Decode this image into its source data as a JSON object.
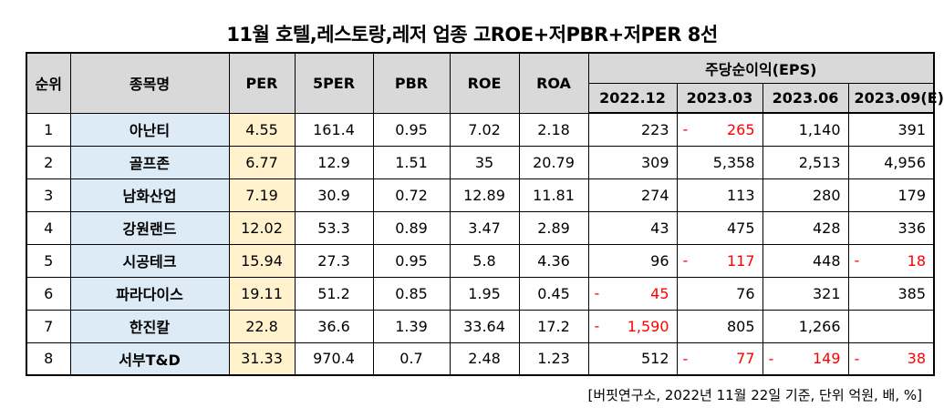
{
  "title": "11월  호텔,레스토랑,레저 업종 고ROE+저PBR+저PER 8선",
  "headers": {
    "rank": "순위",
    "name": "종목명",
    "per": "PER",
    "per5": "5PER",
    "pbr": "PBR",
    "roe": "ROE",
    "roa": "ROA",
    "eps_group": "주당순이익(EPS)",
    "eps_periods": [
      "2022.12",
      "2023.03",
      "2023.06",
      "2023.09(E)"
    ]
  },
  "rows": [
    {
      "rank": "1",
      "name": "아난티",
      "per": "4.55",
      "per5": "161.4",
      "pbr": "0.95",
      "roe": "7.02",
      "roa": "2.18",
      "eps": [
        {
          "v": "223",
          "neg": false
        },
        {
          "v": "265",
          "neg": true
        },
        {
          "v": "1,140",
          "neg": false
        },
        {
          "v": "391",
          "neg": false
        }
      ]
    },
    {
      "rank": "2",
      "name": "골프존",
      "per": "6.77",
      "per5": "12.9",
      "pbr": "1.51",
      "roe": "35",
      "roa": "20.79",
      "eps": [
        {
          "v": "309",
          "neg": false
        },
        {
          "v": "5,358",
          "neg": false
        },
        {
          "v": "2,513",
          "neg": false
        },
        {
          "v": "4,956",
          "neg": false
        }
      ]
    },
    {
      "rank": "3",
      "name": "남화산업",
      "per": "7.19",
      "per5": "30.9",
      "pbr": "0.72",
      "roe": "12.89",
      "roa": "11.81",
      "eps": [
        {
          "v": "274",
          "neg": false
        },
        {
          "v": "113",
          "neg": false
        },
        {
          "v": "280",
          "neg": false
        },
        {
          "v": "179",
          "neg": false
        }
      ]
    },
    {
      "rank": "4",
      "name": "강원랜드",
      "per": "12.02",
      "per5": "53.3",
      "pbr": "0.89",
      "roe": "3.47",
      "roa": "2.89",
      "eps": [
        {
          "v": "43",
          "neg": false
        },
        {
          "v": "475",
          "neg": false
        },
        {
          "v": "428",
          "neg": false
        },
        {
          "v": "336",
          "neg": false
        }
      ]
    },
    {
      "rank": "5",
      "name": "시공테크",
      "per": "15.94",
      "per5": "27.3",
      "pbr": "0.95",
      "roe": "5.8",
      "roa": "4.36",
      "eps": [
        {
          "v": "96",
          "neg": false
        },
        {
          "v": "117",
          "neg": true
        },
        {
          "v": "448",
          "neg": false
        },
        {
          "v": "18",
          "neg": true
        }
      ]
    },
    {
      "rank": "6",
      "name": "파라다이스",
      "per": "19.11",
      "per5": "51.2",
      "pbr": "0.85",
      "roe": "1.95",
      "roa": "0.45",
      "eps": [
        {
          "v": "45",
          "neg": true
        },
        {
          "v": "76",
          "neg": false
        },
        {
          "v": "321",
          "neg": false
        },
        {
          "v": "385",
          "neg": false
        }
      ]
    },
    {
      "rank": "7",
      "name": "한진칼",
      "per": "22.8",
      "per5": "36.6",
      "pbr": "1.39",
      "roe": "33.64",
      "roa": "17.2",
      "eps": [
        {
          "v": "1,590",
          "neg": true
        },
        {
          "v": "805",
          "neg": false
        },
        {
          "v": "1,266",
          "neg": false
        },
        {
          "v": "",
          "neg": false
        }
      ]
    },
    {
      "rank": "8",
      "name": "서부T&D",
      "per": "31.33",
      "per5": "970.4",
      "pbr": "0.7",
      "roe": "2.48",
      "roa": "1.23",
      "eps": [
        {
          "v": "512",
          "neg": false
        },
        {
          "v": "77",
          "neg": true
        },
        {
          "v": "149",
          "neg": true
        },
        {
          "v": "38",
          "neg": true
        }
      ]
    }
  ],
  "neg_marker": "-",
  "source": "[버핏연구소, 2022년 11월 22일 기준, 단위 억원, 배, %]"
}
